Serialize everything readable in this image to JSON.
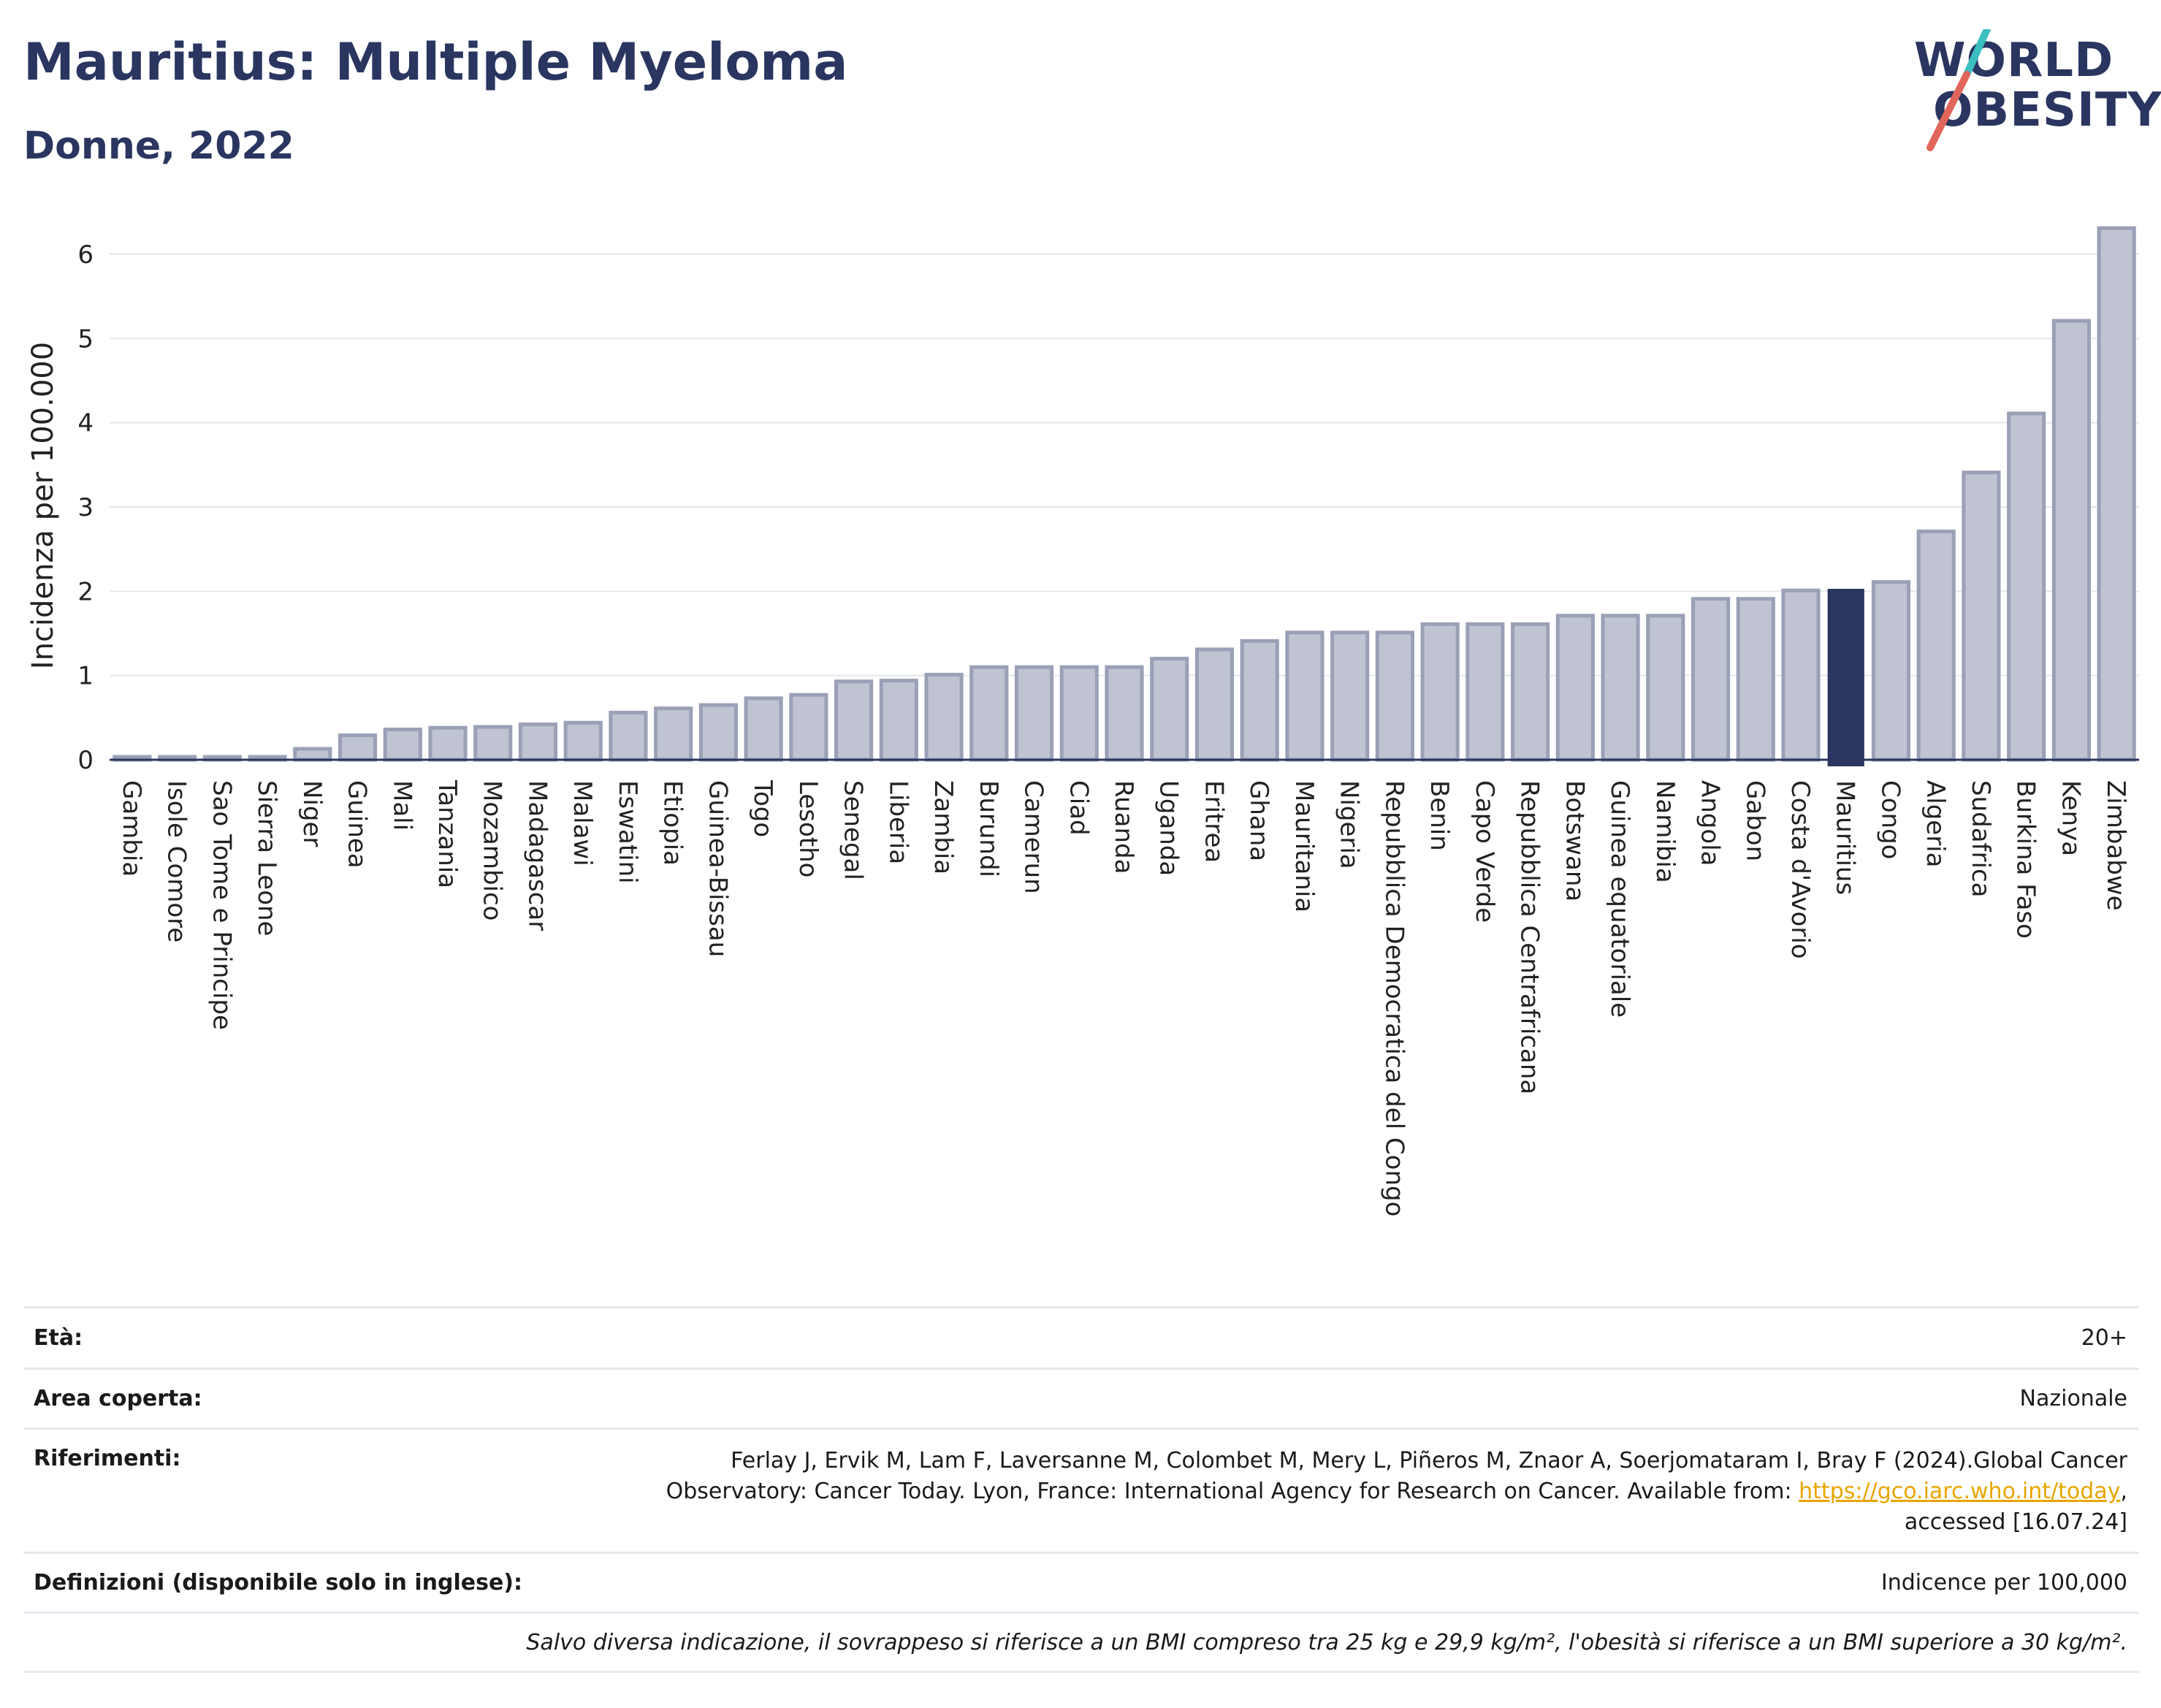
{
  "title": "Mauritius: Multiple Myeloma",
  "subtitle": "Donne, 2022",
  "logo": {
    "line1": "WORLD",
    "line2": "OBESITY",
    "accent_teal": "#3bbfbf",
    "accent_red": "#e0665a"
  },
  "chart_data": {
    "type": "bar",
    "title": "Mauritius: Multiple Myeloma",
    "subtitle": "Donne, 2022",
    "ylabel": "Incidenza per 100.000",
    "xlabel": "",
    "ylim": [
      0,
      6.5
    ],
    "yticks": [
      0,
      1,
      2,
      3,
      4,
      5,
      6
    ],
    "grid": true,
    "highlight": "Mauritius",
    "colors": {
      "bar": "#bfc3d2",
      "bar_edge": "#9aa0b6",
      "highlight": "#2a3560"
    },
    "categories": [
      "Gambia",
      "Isole Comore",
      "Sao Tome e Principe",
      "Sierra Leone",
      "Niger",
      "Guinea",
      "Mali",
      "Tanzania",
      "Mozambico",
      "Madagascar",
      "Malawi",
      "Eswatini",
      "Etiopia",
      "Guinea-Bissau",
      "Togo",
      "Lesotho",
      "Senegal",
      "Liberia",
      "Zambia",
      "Burundi",
      "Camerun",
      "Ciad",
      "Ruanda",
      "Uganda",
      "Eritrea",
      "Ghana",
      "Mauritania",
      "Nigeria",
      "Repubblica Democratica del Congo",
      "Benin",
      "Capo Verde",
      "Repubblica Centrafricana",
      "Botswana",
      "Guinea equatoriale",
      "Namibia",
      "Angola",
      "Gabon",
      "Costa d'Avorio",
      "Mauritius",
      "Congo",
      "Algeria",
      "Sudafrica",
      "Burkina Faso",
      "Kenya",
      "Zimbabwe"
    ],
    "values": [
      0.03,
      0.03,
      0.03,
      0.03,
      0.13,
      0.29,
      0.36,
      0.38,
      0.39,
      0.42,
      0.44,
      0.56,
      0.61,
      0.65,
      0.73,
      0.77,
      0.93,
      0.94,
      1.01,
      1.1,
      1.1,
      1.1,
      1.1,
      1.2,
      1.31,
      1.41,
      1.51,
      1.51,
      1.51,
      1.61,
      1.61,
      1.61,
      1.71,
      1.71,
      1.71,
      1.91,
      1.91,
      2.01,
      2.02,
      2.11,
      2.71,
      3.41,
      4.11,
      5.21,
      6.31
    ]
  },
  "meta": {
    "age_label": "Età:",
    "age_value": "20+",
    "area_label": "Area coperta:",
    "area_value": "Nazionale",
    "refs_label": "Riferimenti:",
    "refs_line1": "Ferlay J, Ervik M, Lam F, Laversanne M, Colombet M, Mery L, Piñeros M, Znaor A, Soerjomataram I, Bray F (2024).Global Cancer",
    "refs_line2": "Observatory: Cancer Today. Lyon, France: International Agency for Research on Cancer. Available from: ",
    "refs_link": "https://gco.iarc.who.int/today",
    "refs_line2_end": ",",
    "refs_line3": "accessed [16.07.24]",
    "def_label": "Definizioni (disponibile solo in inglese):",
    "def_value": "Indicence per 100,000",
    "note": "Salvo diversa indicazione, il sovrappeso si riferisce a un BMI compreso tra 25 kg e 29,9 kg/m², l'obesità si riferisce a un BMI superiore a 30 kg/m²."
  }
}
